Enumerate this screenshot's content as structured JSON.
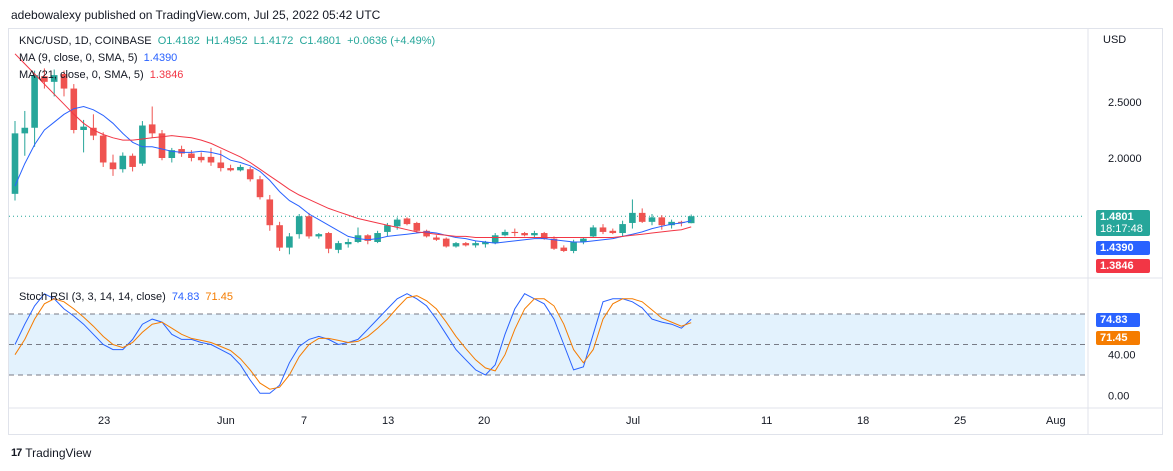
{
  "header": {
    "publish_text": "adebowalexy published on TradingView.com, Jul 25, 2022 05:42 UTC"
  },
  "legend": {
    "symbol": "KNC/USD, 1D, COINBASE",
    "open": "O1.4182",
    "high": "H1.4952",
    "low": "L1.4172",
    "close": "C1.4801",
    "change": "+0.0636 (+4.49%)",
    "ma9_label": "MA (9, close, 0, SMA, 5)",
    "ma9_value": "1.4390",
    "ma21_label": "MA (21, close, 0, SMA, 5)",
    "ma21_value": "1.3846",
    "rsi_label": "Stoch RSI (3, 3, 14, 14, close)",
    "rsi_k": "74.83",
    "rsi_d": "71.45"
  },
  "price_axis": {
    "currency": "USD",
    "ticks": [
      "2.5000",
      "2.0000"
    ],
    "last_price": "1.4801",
    "countdown": "18:17:48",
    "ma9_badge": "1.4390",
    "ma21_badge": "1.3846"
  },
  "rsi_axis": {
    "ticks": [
      "40.00",
      "0.00"
    ],
    "k_badge": "74.83",
    "d_badge": "71.45"
  },
  "time_axis": {
    "labels": [
      "23",
      "Jun",
      "7",
      "13",
      "20",
      "Jul",
      "11",
      "18",
      "25",
      "Aug"
    ]
  },
  "footer": {
    "brand": "TradingView"
  },
  "colors": {
    "up": "#26a69a",
    "down": "#ef5350",
    "ma9": "#2962ff",
    "ma21": "#f23645",
    "stoch_k": "#2962ff",
    "stoch_d": "#f57c00",
    "rsi_band": "#e3f2fd"
  },
  "chart_data": [
    {
      "type": "candlestick",
      "title": "KNC/USD, 1D, COINBASE",
      "ylabel": "USD",
      "y_ticks": [
        2.0,
        2.5
      ],
      "x_tick_labels": [
        "23",
        "Jun",
        "7",
        "13",
        "20",
        "Jul",
        "11",
        "18",
        "25",
        "Aug"
      ],
      "candles": [
        {
          "o": 1.68,
          "h": 2.33,
          "l": 1.62,
          "c": 2.22
        },
        {
          "o": 2.22,
          "h": 2.42,
          "l": 2.02,
          "c": 2.27
        },
        {
          "o": 2.27,
          "h": 2.78,
          "l": 2.1,
          "c": 2.74
        },
        {
          "o": 2.73,
          "h": 2.8,
          "l": 2.62,
          "c": 2.68
        },
        {
          "o": 2.68,
          "h": 2.79,
          "l": 2.55,
          "c": 2.74
        },
        {
          "o": 2.75,
          "h": 2.78,
          "l": 2.55,
          "c": 2.62
        },
        {
          "o": 2.62,
          "h": 2.66,
          "l": 2.22,
          "c": 2.25
        },
        {
          "o": 2.25,
          "h": 2.34,
          "l": 2.05,
          "c": 2.28
        },
        {
          "o": 2.27,
          "h": 2.39,
          "l": 2.16,
          "c": 2.2
        },
        {
          "o": 2.2,
          "h": 2.23,
          "l": 1.92,
          "c": 1.96
        },
        {
          "o": 1.96,
          "h": 2.03,
          "l": 1.84,
          "c": 1.9
        },
        {
          "o": 1.9,
          "h": 2.05,
          "l": 1.87,
          "c": 2.02
        },
        {
          "o": 2.02,
          "h": 2.04,
          "l": 1.88,
          "c": 1.92
        },
        {
          "o": 1.95,
          "h": 2.33,
          "l": 1.93,
          "c": 2.29
        },
        {
          "o": 2.3,
          "h": 2.46,
          "l": 2.18,
          "c": 2.22
        },
        {
          "o": 2.22,
          "h": 2.25,
          "l": 1.98,
          "c": 2.0
        },
        {
          "o": 2.0,
          "h": 2.09,
          "l": 1.96,
          "c": 2.07
        },
        {
          "o": 2.08,
          "h": 2.11,
          "l": 2.01,
          "c": 2.04
        },
        {
          "o": 2.04,
          "h": 2.07,
          "l": 1.97,
          "c": 2.0
        },
        {
          "o": 2.01,
          "h": 2.05,
          "l": 1.96,
          "c": 1.98
        },
        {
          "o": 2.01,
          "h": 2.09,
          "l": 1.93,
          "c": 1.96
        },
        {
          "o": 1.96,
          "h": 2.07,
          "l": 1.88,
          "c": 1.91
        },
        {
          "o": 1.91,
          "h": 1.94,
          "l": 1.88,
          "c": 1.89
        },
        {
          "o": 1.89,
          "h": 1.94,
          "l": 1.88,
          "c": 1.92
        },
        {
          "o": 1.9,
          "h": 1.92,
          "l": 1.79,
          "c": 1.81
        },
        {
          "o": 1.81,
          "h": 1.84,
          "l": 1.63,
          "c": 1.65
        },
        {
          "o": 1.63,
          "h": 1.67,
          "l": 1.35,
          "c": 1.4
        },
        {
          "o": 1.4,
          "h": 1.43,
          "l": 1.17,
          "c": 1.2
        },
        {
          "o": 1.2,
          "h": 1.33,
          "l": 1.14,
          "c": 1.3
        },
        {
          "o": 1.32,
          "h": 1.5,
          "l": 1.28,
          "c": 1.48
        },
        {
          "o": 1.48,
          "h": 1.51,
          "l": 1.28,
          "c": 1.3
        },
        {
          "o": 1.3,
          "h": 1.33,
          "l": 1.28,
          "c": 1.32
        },
        {
          "o": 1.33,
          "h": 1.34,
          "l": 1.15,
          "c": 1.19
        },
        {
          "o": 1.18,
          "h": 1.26,
          "l": 1.15,
          "c": 1.24
        },
        {
          "o": 1.23,
          "h": 1.28,
          "l": 1.2,
          "c": 1.25
        },
        {
          "o": 1.25,
          "h": 1.38,
          "l": 1.24,
          "c": 1.31
        },
        {
          "o": 1.31,
          "h": 1.32,
          "l": 1.23,
          "c": 1.26
        },
        {
          "o": 1.25,
          "h": 1.35,
          "l": 1.24,
          "c": 1.33
        },
        {
          "o": 1.34,
          "h": 1.42,
          "l": 1.3,
          "c": 1.4
        },
        {
          "o": 1.39,
          "h": 1.47,
          "l": 1.36,
          "c": 1.45
        },
        {
          "o": 1.46,
          "h": 1.47,
          "l": 1.4,
          "c": 1.41
        },
        {
          "o": 1.42,
          "h": 1.43,
          "l": 1.33,
          "c": 1.35
        },
        {
          "o": 1.35,
          "h": 1.36,
          "l": 1.29,
          "c": 1.3
        },
        {
          "o": 1.29,
          "h": 1.31,
          "l": 1.26,
          "c": 1.27
        },
        {
          "o": 1.28,
          "h": 1.29,
          "l": 1.2,
          "c": 1.21
        },
        {
          "o": 1.21,
          "h": 1.25,
          "l": 1.2,
          "c": 1.24
        },
        {
          "o": 1.24,
          "h": 1.25,
          "l": 1.21,
          "c": 1.22
        },
        {
          "o": 1.22,
          "h": 1.26,
          "l": 1.2,
          "c": 1.24
        },
        {
          "o": 1.23,
          "h": 1.26,
          "l": 1.2,
          "c": 1.25
        },
        {
          "o": 1.24,
          "h": 1.33,
          "l": 1.23,
          "c": 1.31
        },
        {
          "o": 1.31,
          "h": 1.36,
          "l": 1.3,
          "c": 1.34
        },
        {
          "o": 1.34,
          "h": 1.37,
          "l": 1.3,
          "c": 1.33
        },
        {
          "o": 1.33,
          "h": 1.34,
          "l": 1.3,
          "c": 1.31
        },
        {
          "o": 1.31,
          "h": 1.35,
          "l": 1.29,
          "c": 1.33
        },
        {
          "o": 1.33,
          "h": 1.34,
          "l": 1.27,
          "c": 1.28
        },
        {
          "o": 1.28,
          "h": 1.3,
          "l": 1.18,
          "c": 1.19
        },
        {
          "o": 1.2,
          "h": 1.22,
          "l": 1.16,
          "c": 1.17
        },
        {
          "o": 1.17,
          "h": 1.27,
          "l": 1.15,
          "c": 1.25
        },
        {
          "o": 1.25,
          "h": 1.29,
          "l": 1.23,
          "c": 1.28
        },
        {
          "o": 1.3,
          "h": 1.4,
          "l": 1.29,
          "c": 1.38
        },
        {
          "o": 1.38,
          "h": 1.41,
          "l": 1.32,
          "c": 1.34
        },
        {
          "o": 1.35,
          "h": 1.37,
          "l": 1.32,
          "c": 1.33
        },
        {
          "o": 1.33,
          "h": 1.44,
          "l": 1.3,
          "c": 1.41
        },
        {
          "o": 1.42,
          "h": 1.63,
          "l": 1.37,
          "c": 1.51
        },
        {
          "o": 1.51,
          "h": 1.55,
          "l": 1.42,
          "c": 1.43
        },
        {
          "o": 1.43,
          "h": 1.5,
          "l": 1.4,
          "c": 1.47
        },
        {
          "o": 1.47,
          "h": 1.49,
          "l": 1.36,
          "c": 1.4
        },
        {
          "o": 1.4,
          "h": 1.45,
          "l": 1.37,
          "c": 1.43
        },
        {
          "o": 1.43,
          "h": 1.44,
          "l": 1.39,
          "c": 1.42
        },
        {
          "o": 1.4182,
          "h": 1.4952,
          "l": 1.4172,
          "c": 1.4801
        }
      ],
      "moving_averages": [
        {
          "name": "MA (9, close, 0, SMA, 5)",
          "last": 1.439,
          "values": [
            1.75,
            1.95,
            2.12,
            2.25,
            2.32,
            2.39,
            2.44,
            2.46,
            2.43,
            2.38,
            2.31,
            2.22,
            2.14,
            2.1,
            2.1,
            2.08,
            2.06,
            2.05,
            2.05,
            2.06,
            2.05,
            2.03,
            1.98,
            1.96,
            1.93,
            1.88,
            1.8,
            1.7,
            1.62,
            1.57,
            1.5,
            1.45,
            1.4,
            1.35,
            1.3,
            1.28,
            1.27,
            1.28,
            1.3,
            1.31,
            1.32,
            1.33,
            1.34,
            1.33,
            1.31,
            1.29,
            1.28,
            1.26,
            1.25,
            1.24,
            1.25,
            1.26,
            1.27,
            1.28,
            1.28,
            1.27,
            1.26,
            1.25,
            1.25,
            1.26,
            1.27,
            1.28,
            1.3,
            1.32,
            1.34,
            1.37,
            1.39,
            1.41,
            1.42,
            1.439
          ]
        },
        {
          "name": "MA (21, close, 0, SMA, 5)",
          "last": 1.3846,
          "values": [
            2.93,
            2.84,
            2.75,
            2.66,
            2.57,
            2.48,
            2.39,
            2.31,
            2.25,
            2.21,
            2.18,
            2.16,
            2.16,
            2.17,
            2.18,
            2.19,
            2.2,
            2.19,
            2.18,
            2.16,
            2.13,
            2.09,
            2.05,
            2.01,
            1.96,
            1.9,
            1.84,
            1.78,
            1.72,
            1.67,
            1.63,
            1.59,
            1.55,
            1.52,
            1.49,
            1.46,
            1.44,
            1.42,
            1.4,
            1.38,
            1.36,
            1.34,
            1.33,
            1.32,
            1.31,
            1.3,
            1.3,
            1.29,
            1.29,
            1.29,
            1.29,
            1.29,
            1.29,
            1.29,
            1.29,
            1.29,
            1.29,
            1.29,
            1.29,
            1.29,
            1.29,
            1.29,
            1.3,
            1.31,
            1.32,
            1.33,
            1.34,
            1.35,
            1.36,
            1.3846
          ]
        }
      ],
      "last_price": 1.4801
    },
    {
      "type": "line",
      "title": "Stoch RSI (3, 3, 14, 14, close)",
      "y_ticks": [
        0,
        40
      ],
      "bands": {
        "upper": 80,
        "middle": 50,
        "lower": 20
      },
      "series": [
        {
          "name": "K",
          "last": 74.83,
          "values": [
            50,
            70,
            88,
            100,
            95,
            85,
            78,
            70,
            60,
            50,
            45,
            45,
            55,
            70,
            75,
            72,
            60,
            55,
            55,
            52,
            50,
            45,
            40,
            30,
            15,
            2,
            2,
            10,
            32,
            48,
            55,
            58,
            55,
            50,
            52,
            55,
            65,
            75,
            85,
            95,
            100,
            95,
            88,
            75,
            60,
            45,
            35,
            25,
            20,
            30,
            60,
            85,
            100,
            95,
            90,
            75,
            50,
            25,
            28,
            60,
            92,
            95,
            95,
            92,
            86,
            75,
            72,
            70,
            66,
            74.83
          ]
        },
        {
          "name": "D",
          "last": 71.45,
          "values": [
            40,
            55,
            75,
            90,
            95,
            92,
            85,
            77,
            68,
            58,
            50,
            47,
            52,
            62,
            70,
            72,
            66,
            60,
            56,
            54,
            52,
            48,
            44,
            36,
            25,
            12,
            6,
            8,
            20,
            38,
            50,
            56,
            56,
            54,
            52,
            53,
            58,
            66,
            75,
            86,
            96,
            98,
            93,
            85,
            72,
            58,
            46,
            35,
            27,
            24,
            40,
            65,
            85,
            95,
            95,
            88,
            70,
            45,
            32,
            45,
            75,
            90,
            95,
            95,
            92,
            84,
            76,
            72,
            68,
            71.45
          ]
        }
      ]
    }
  ]
}
